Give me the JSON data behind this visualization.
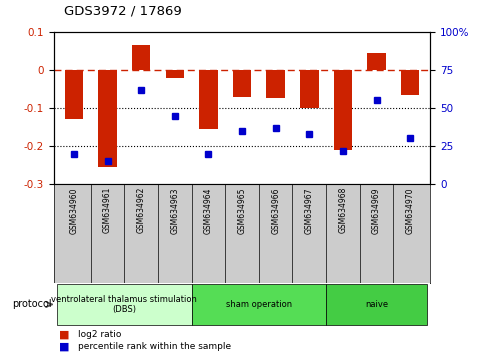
{
  "title": "GDS3972 / 17869",
  "samples": [
    "GSM634960",
    "GSM634961",
    "GSM634962",
    "GSM634963",
    "GSM634964",
    "GSM634965",
    "GSM634966",
    "GSM634967",
    "GSM634968",
    "GSM634969",
    "GSM634970"
  ],
  "log2_ratio": [
    -0.13,
    -0.255,
    0.065,
    -0.02,
    -0.155,
    -0.07,
    -0.075,
    -0.1,
    -0.21,
    0.045,
    -0.065
  ],
  "percentile_rank": [
    20,
    15,
    62,
    45,
    20,
    35,
    37,
    33,
    22,
    55,
    30
  ],
  "groups": [
    {
      "label": "ventrolateral thalamus stimulation\n(DBS)",
      "start": 0,
      "end": 3,
      "color": "#ccffcc"
    },
    {
      "label": "sham operation",
      "start": 4,
      "end": 7,
      "color": "#55dd55"
    },
    {
      "label": "naive",
      "start": 8,
      "end": 10,
      "color": "#44cc44"
    }
  ],
  "bar_color": "#cc2200",
  "dot_color": "#0000cc",
  "dashed_line_color": "#cc2200",
  "ylim_left": [
    -0.3,
    0.1
  ],
  "ylim_right": [
    0,
    100
  ],
  "yticks_left": [
    -0.3,
    -0.2,
    -0.1,
    0.0,
    0.1
  ],
  "yticks_right": [
    0,
    25,
    50,
    75,
    100
  ],
  "background_color": "#ffffff"
}
